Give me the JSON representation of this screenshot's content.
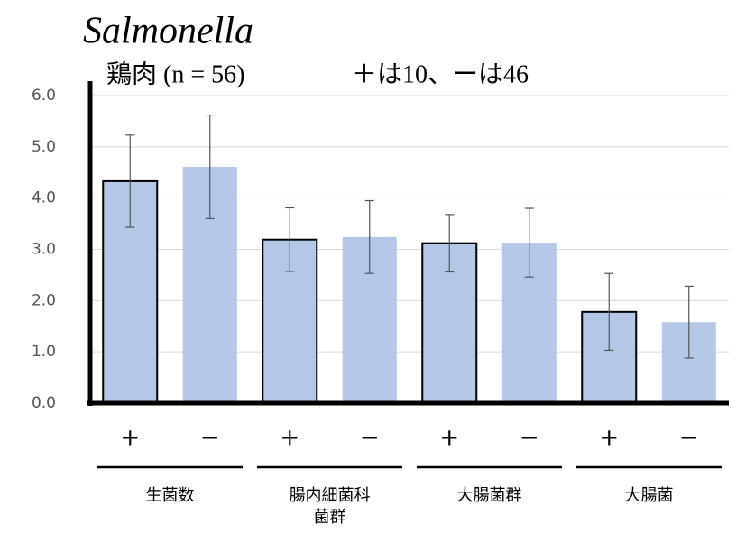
{
  "chart_data": {
    "type": "bar",
    "title": "Salmonella",
    "subtitle": "鶏肉 (n = 56)",
    "annotation": "＋は10、ーは46",
    "categories": [
      "+",
      "−",
      "+",
      "−",
      "+",
      "−",
      "+",
      "−"
    ],
    "groups": [
      [
        "生菌数"
      ],
      [
        "腸内細菌科",
        "菌群"
      ],
      [
        "大腸菌群"
      ],
      [
        "大腸菌"
      ]
    ],
    "values": [
      4.33,
      4.61,
      3.19,
      3.24,
      3.12,
      3.13,
      1.78,
      1.58
    ],
    "errors": [
      0.9,
      1.01,
      0.62,
      0.71,
      0.56,
      0.67,
      0.75,
      0.7
    ],
    "color": "#b4c7e7",
    "edgecolors": [
      "#000000",
      null,
      "#000000",
      null,
      "#000000",
      null,
      "#000000",
      null
    ],
    "ylim": [
      0,
      6
    ],
    "yticks": [
      {
        "value": 0,
        "label": "0.0"
      },
      {
        "value": 1,
        "label": "1.0"
      },
      {
        "value": 2,
        "label": "2.0"
      },
      {
        "value": 3,
        "label": "3.0"
      },
      {
        "value": 4,
        "label": "4.0"
      },
      {
        "value": 5,
        "label": "5.0"
      },
      {
        "value": 6,
        "label": "6.0"
      }
    ],
    "grid": true
  }
}
